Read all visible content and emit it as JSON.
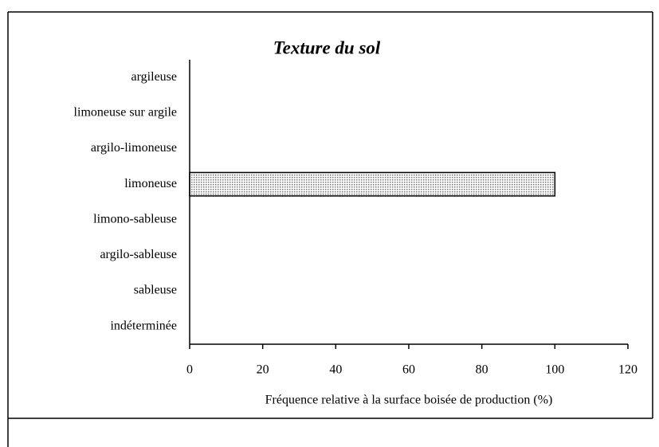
{
  "chart_data": {
    "type": "barh",
    "title": "Texture du sol",
    "x_label": "Fréquence relative à la surface boisée de production (%)",
    "categories": [
      "argileuse",
      "limoneuse sur argile",
      "argilo-limoneuse",
      "limoneuse",
      "limono-sableuse",
      "argilo-sableuse",
      "sableuse",
      "indéterminée"
    ],
    "values": [
      0,
      0,
      0,
      100,
      0,
      0,
      0,
      0
    ],
    "color": "#d4d4d4",
    "xlim": [
      0,
      120
    ],
    "xticks": [
      0,
      20,
      40,
      60,
      80,
      100,
      120
    ],
    "grid": false
  }
}
